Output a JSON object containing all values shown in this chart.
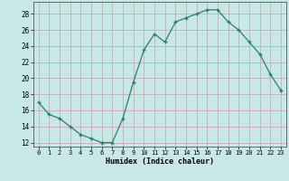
{
  "x": [
    0,
    1,
    2,
    3,
    4,
    5,
    6,
    7,
    8,
    9,
    10,
    11,
    12,
    13,
    14,
    15,
    16,
    17,
    18,
    19,
    20,
    21,
    22,
    23
  ],
  "y": [
    17,
    15.5,
    15,
    14,
    13,
    12.5,
    12,
    12,
    15,
    19.5,
    23.5,
    25.5,
    24.5,
    27,
    27.5,
    28,
    28.5,
    28.5,
    27,
    26,
    24.5,
    23,
    20.5,
    18.5
  ],
  "xlabel": "Humidex (Indice chaleur)",
  "xlim": [
    -0.5,
    23.5
  ],
  "ylim": [
    11.5,
    29.5
  ],
  "yticks": [
    12,
    14,
    16,
    18,
    20,
    22,
    24,
    26,
    28
  ],
  "xticks": [
    0,
    1,
    2,
    3,
    4,
    5,
    6,
    7,
    8,
    9,
    10,
    11,
    12,
    13,
    14,
    15,
    16,
    17,
    18,
    19,
    20,
    21,
    22,
    23
  ],
  "line_color": "#2d7d6a",
  "marker_color": "#2d7d6a",
  "bg_color": "#c8e8e8",
  "grid_color": "#b0d8d8",
  "face_color": "#c8e8e8"
}
